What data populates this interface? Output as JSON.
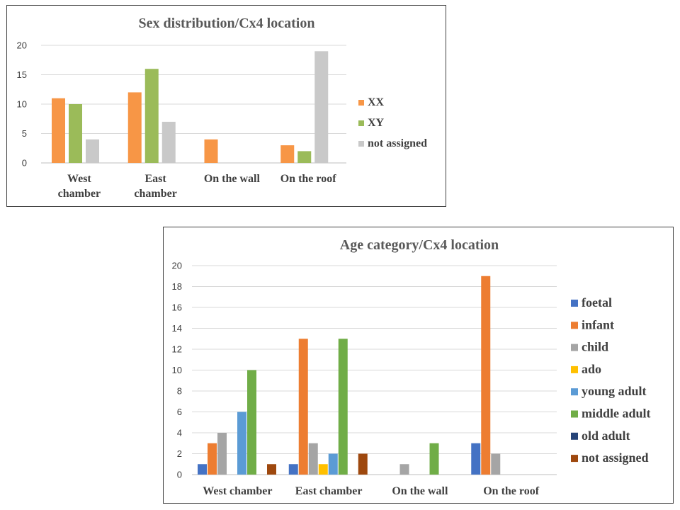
{
  "chart_data": [
    {
      "type": "bar",
      "title": "Sex distribution/Cx4 location",
      "categories": [
        [
          "West",
          "chamber"
        ],
        [
          "East",
          "chamber"
        ],
        [
          "On the wall"
        ],
        [
          "On the roof"
        ]
      ],
      "ylim": [
        0,
        20
      ],
      "yticks": [
        0,
        5,
        10,
        15,
        20
      ],
      "grid": true,
      "legend": "right",
      "series": [
        {
          "name": "XX",
          "color": "#F79646",
          "values": [
            11,
            12,
            4,
            3
          ]
        },
        {
          "name": "XY",
          "color": "#9BBB59",
          "values": [
            10,
            16,
            0,
            2
          ]
        },
        {
          "name": "not assigned",
          "color": "#C9C9C9",
          "values": [
            4,
            7,
            0,
            19
          ]
        }
      ]
    },
    {
      "type": "bar",
      "title": "Age category/Cx4 location",
      "categories": [
        [
          "West chamber"
        ],
        [
          "East chamber"
        ],
        [
          "On the wall"
        ],
        [
          "On the roof"
        ]
      ],
      "ylim": [
        0,
        20
      ],
      "yticks": [
        0,
        2,
        4,
        6,
        8,
        10,
        12,
        14,
        16,
        18,
        20
      ],
      "grid": true,
      "legend": "right",
      "series": [
        {
          "name": "foetal",
          "color": "#4472C4",
          "values": [
            1,
            1,
            0,
            3
          ]
        },
        {
          "name": "infant",
          "color": "#ED7D31",
          "values": [
            3,
            13,
            0,
            19
          ]
        },
        {
          "name": "child",
          "color": "#A5A5A5",
          "values": [
            4,
            3,
            1,
            2
          ]
        },
        {
          "name": "ado",
          "color": "#FFC000",
          "values": [
            0,
            1,
            0,
            0
          ]
        },
        {
          "name": "young adult",
          "color": "#5B9BD5",
          "values": [
            6,
            2,
            0,
            0
          ]
        },
        {
          "name": "middle adult",
          "color": "#70AD47",
          "values": [
            10,
            13,
            3,
            0
          ]
        },
        {
          "name": "old adult",
          "color": "#264478",
          "values": [
            0,
            0,
            0,
            0
          ]
        },
        {
          "name": "not assigned",
          "color": "#9E480E",
          "values": [
            1,
            2,
            0,
            0
          ]
        }
      ]
    }
  ]
}
